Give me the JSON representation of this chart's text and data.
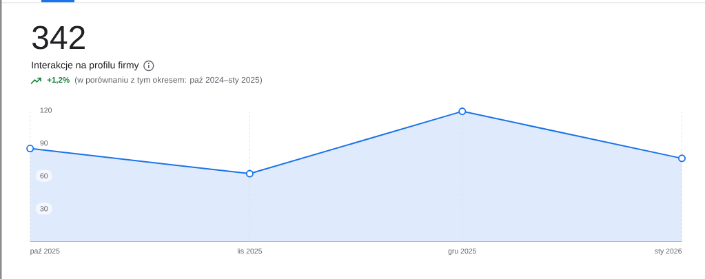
{
  "chart_data": {
    "type": "area",
    "title": "Interakcje na profilu firmy",
    "subtitle": "(w porównaniu z tym okresem: paź 2024–sty 2025)",
    "annotations": [
      "342",
      "+1,2%"
    ],
    "x": [
      "2025-10",
      "2025-11",
      "2025-12",
      "2026-01"
    ],
    "values": [
      85,
      62,
      119,
      76
    ],
    "color": "#1a73e8",
    "xlim": [
      "2025-10",
      "2026-01"
    ],
    "xticks": [
      {
        "value": "2025-10",
        "label": "paź 2025"
      },
      {
        "value": "2025-11",
        "label": "lis 2025"
      },
      {
        "value": "2025-12",
        "label": "gru 2025"
      },
      {
        "value": "2026-01",
        "label": "sty 2026"
      }
    ],
    "ylim": [
      0,
      120
    ],
    "yticks": [
      30,
      60,
      90,
      120
    ],
    "grid": "x",
    "marker": "circle"
  }
}
